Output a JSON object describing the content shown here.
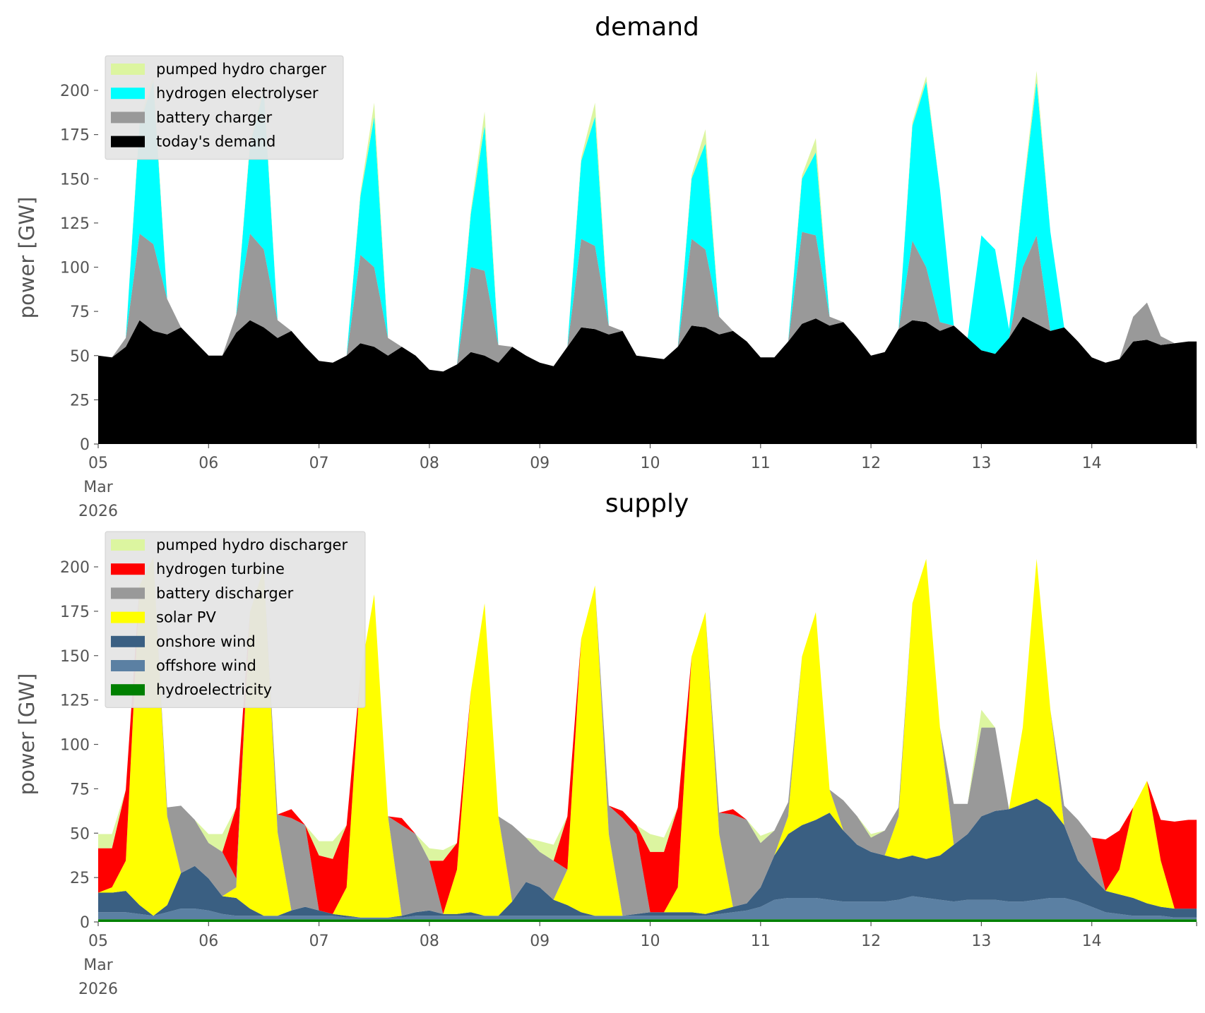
{
  "chart_data": [
    {
      "type": "area",
      "stacked": true,
      "title": "demand",
      "ylabel": "power [GW]",
      "xlabel": "",
      "ylim": [
        0,
        220
      ],
      "yticks": [
        "0",
        "25",
        "50",
        "75",
        "100",
        "125",
        "150",
        "175",
        "200"
      ],
      "xticks": [
        "05",
        "06",
        "07",
        "08",
        "09",
        "10",
        "11",
        "12",
        "13",
        "14"
      ],
      "xtick_sub": [
        "Mar",
        "2026"
      ],
      "x_start": "2026-03-05 00:00",
      "x_step_hours": 3,
      "x_range_days": [
        0,
        9.95
      ],
      "legend_position": "top-left",
      "grid": false,
      "series": [
        {
          "name": "today's demand",
          "color": "#000000",
          "values": [
            50,
            49,
            55,
            70,
            64,
            62,
            66,
            58,
            50,
            50,
            63,
            70,
            66,
            60,
            64,
            55,
            47,
            46,
            50,
            57,
            55,
            50,
            55,
            50,
            42,
            41,
            45,
            52,
            50,
            46,
            55,
            50,
            46,
            44,
            55,
            66,
            65,
            62,
            64,
            50,
            49,
            48,
            55,
            67,
            66,
            62,
            64,
            58,
            49,
            49,
            58,
            68,
            71,
            67,
            69,
            60,
            50,
            52,
            65,
            70,
            69,
            64,
            67,
            60,
            53,
            51,
            60,
            72,
            68,
            64,
            66,
            58,
            49,
            46,
            48,
            58,
            59,
            56,
            57,
            58
          ]
        },
        {
          "name": "battery charger",
          "color": "#999999",
          "values": [
            0,
            0,
            5,
            49,
            49,
            20,
            0,
            0,
            0,
            0,
            10,
            49,
            44,
            10,
            0,
            0,
            0,
            0,
            0,
            50,
            45,
            10,
            0,
            0,
            0,
            0,
            0,
            48,
            48,
            10,
            0,
            0,
            0,
            0,
            0,
            50,
            47,
            5,
            0,
            0,
            0,
            0,
            0,
            49,
            44,
            10,
            0,
            0,
            0,
            0,
            0,
            52,
            47,
            5,
            0,
            0,
            0,
            0,
            0,
            45,
            31,
            5,
            0,
            0,
            0,
            0,
            0,
            28,
            50,
            0,
            0,
            0,
            0,
            0,
            0,
            14,
            21,
            5,
            0,
            0
          ]
        },
        {
          "name": "hydrogen electrolyser",
          "color": "#00ffff",
          "values": [
            0,
            0,
            0,
            62,
            92,
            0,
            0,
            0,
            0,
            0,
            0,
            50,
            90,
            0,
            0,
            0,
            0,
            0,
            0,
            33,
            85,
            0,
            0,
            0,
            0,
            0,
            0,
            30,
            82,
            0,
            0,
            0,
            0,
            0,
            0,
            44,
            73,
            0,
            0,
            0,
            0,
            0,
            0,
            34,
            60,
            0,
            0,
            0,
            0,
            0,
            0,
            30,
            47,
            0,
            0,
            0,
            0,
            0,
            0,
            65,
            105,
            75,
            0,
            0,
            65,
            59,
            5,
            40,
            87,
            56,
            0,
            0,
            0,
            0,
            0,
            0,
            0,
            0,
            0,
            0
          ]
        },
        {
          "name": "pumped hydro charger",
          "color": "#dcf5a0",
          "values": [
            0,
            0,
            0,
            2,
            4,
            0,
            0,
            0,
            0,
            0,
            0,
            2,
            3,
            0,
            0,
            0,
            0,
            0,
            0,
            2,
            8,
            0,
            0,
            0,
            0,
            0,
            0,
            2,
            8,
            0,
            0,
            0,
            0,
            0,
            0,
            2,
            8,
            0,
            0,
            0,
            0,
            0,
            0,
            2,
            8,
            0,
            0,
            0,
            0,
            0,
            0,
            2,
            8,
            0,
            0,
            0,
            0,
            0,
            0,
            2,
            3,
            0,
            0,
            0,
            0,
            0,
            0,
            2,
            6,
            0,
            0,
            0,
            0,
            0,
            0,
            0,
            0,
            0,
            0,
            0
          ]
        }
      ]
    },
    {
      "type": "area",
      "stacked": true,
      "title": "supply",
      "ylabel": "power [GW]",
      "xlabel": "",
      "ylim": [
        0,
        220
      ],
      "yticks": [
        "0",
        "25",
        "50",
        "75",
        "100",
        "125",
        "150",
        "175",
        "200"
      ],
      "xticks": [
        "05",
        "06",
        "07",
        "08",
        "09",
        "10",
        "11",
        "12",
        "13",
        "14"
      ],
      "xtick_sub": [
        "Mar",
        "2026"
      ],
      "x_start": "2026-03-05 00:00",
      "x_step_hours": 3,
      "x_range_days": [
        0,
        9.95
      ],
      "legend_position": "top-left",
      "grid": false,
      "series": [
        {
          "name": "hydroelectricity",
          "color": "#008000",
          "values": [
            1.5,
            1.5,
            1.5,
            1.5,
            1.5,
            1.5,
            1.5,
            1.5,
            1.5,
            1.5,
            1.5,
            1.5,
            1.5,
            1.5,
            1.5,
            1.5,
            1.5,
            1.5,
            1.5,
            1.5,
            1.5,
            1.5,
            1.5,
            1.5,
            1.5,
            1.5,
            1.5,
            1.5,
            1.5,
            1.5,
            1.5,
            1.5,
            1.5,
            1.5,
            1.5,
            1.5,
            1.5,
            1.5,
            1.5,
            1.5,
            1.5,
            1.5,
            1.5,
            1.5,
            1.5,
            1.5,
            1.5,
            1.5,
            1.5,
            1.5,
            1.5,
            1.5,
            1.5,
            1.5,
            1.5,
            1.5,
            1.5,
            1.5,
            1.5,
            1.5,
            1.5,
            1.5,
            1.5,
            1.5,
            1.5,
            1.5,
            1.5,
            1.5,
            1.5,
            1.5,
            1.5,
            1.5,
            1.5,
            1.5,
            1.5,
            1.5,
            1.5,
            1.5,
            1.5,
            1.5
          ]
        },
        {
          "name": "offshore wind",
          "color": "#5b80a3",
          "values": [
            4,
            4,
            4,
            3,
            2,
            4,
            6,
            6,
            5,
            3,
            2,
            2,
            2,
            2,
            2,
            2,
            2,
            2,
            1,
            1,
            1,
            1,
            1,
            2,
            2,
            2,
            2,
            2,
            2,
            2,
            2,
            2,
            2,
            2,
            2,
            2,
            2,
            2,
            2,
            2,
            2,
            2,
            2,
            2,
            2,
            3,
            4,
            5,
            7,
            11,
            12,
            12,
            12,
            11,
            10,
            10,
            10,
            10,
            11,
            13,
            12,
            11,
            10,
            11,
            11,
            11,
            10,
            10,
            11,
            12,
            12,
            10,
            7,
            4,
            3,
            2,
            2,
            2,
            1,
            1
          ]
        },
        {
          "name": "onshore wind",
          "color": "#3a5f82",
          "values": [
            11,
            11,
            12,
            5,
            0,
            4,
            20,
            24,
            18,
            10,
            10,
            4,
            0,
            0,
            3,
            5,
            3,
            1,
            1,
            0,
            0,
            0,
            1,
            2,
            3,
            1,
            1,
            2,
            0,
            0,
            8,
            19,
            16,
            9,
            6,
            2,
            0,
            0,
            0,
            1,
            2,
            2,
            2,
            2,
            1,
            2,
            3,
            4,
            11,
            25,
            36,
            41,
            44,
            49,
            40,
            32,
            28,
            26,
            23,
            23,
            22,
            25,
            32,
            37,
            47,
            50,
            52,
            55,
            57,
            51,
            41,
            23,
            17,
            12,
            11,
            10,
            7,
            5,
            5,
            5
          ]
        },
        {
          "name": "solar PV",
          "color": "#ffff00",
          "values": [
            0,
            3,
            17,
            180,
            202,
            50,
            0,
            0,
            0,
            0,
            6,
            167,
            196,
            47,
            0,
            0,
            0,
            0,
            16,
            137,
            182,
            57,
            0,
            0,
            0,
            0,
            25,
            124,
            176,
            56,
            0,
            0,
            0,
            0,
            20,
            154,
            186,
            46,
            0,
            0,
            0,
            0,
            14,
            144,
            170,
            43,
            0,
            0,
            0,
            0,
            10,
            95,
            117,
            13,
            0,
            0,
            0,
            0,
            24,
            142,
            169,
            72,
            0,
            0,
            0,
            0,
            0,
            43,
            135,
            55,
            0,
            0,
            0,
            0,
            14,
            51,
            69,
            26,
            0,
            0
          ]
        },
        {
          "name": "battery discharger",
          "color": "#999999",
          "values": [
            0,
            0,
            0,
            0,
            0,
            5,
            38,
            26,
            20,
            25,
            5,
            0,
            0,
            10,
            52,
            46,
            0,
            0,
            0,
            0,
            0,
            0,
            51,
            44,
            28,
            0,
            0,
            0,
            0,
            0,
            43,
            25,
            20,
            22,
            0,
            0,
            0,
            16,
            55,
            45,
            0,
            0,
            0,
            0,
            0,
            12,
            52,
            47,
            25,
            14,
            8,
            0,
            0,
            0,
            17,
            16,
            8,
            14,
            5,
            0,
            0,
            0,
            23,
            17,
            50,
            47,
            0,
            0,
            0,
            0,
            11,
            23,
            22,
            0,
            0,
            0,
            0,
            0,
            0,
            0
          ]
        },
        {
          "name": "hydrogen turbine",
          "color": "#ff0000",
          "values": [
            25,
            22,
            40,
            0,
            0,
            0,
            0,
            0,
            0,
            0,
            40,
            0,
            0,
            0,
            5,
            0,
            31,
            31,
            35,
            0,
            0,
            0,
            4,
            0,
            0,
            30,
            15,
            0,
            0,
            0,
            0,
            0,
            0,
            0,
            30,
            0,
            0,
            0,
            4,
            5,
            34,
            34,
            45,
            0,
            0,
            0,
            3,
            0,
            0,
            0,
            0,
            0,
            0,
            0,
            0,
            0,
            0,
            0,
            0,
            0,
            0,
            0,
            0,
            0,
            0,
            0,
            0,
            0,
            0,
            0,
            0,
            0,
            0,
            29,
            22,
            0,
            0,
            23,
            49,
            50
          ]
        },
        {
          "name": "pumped hydro discharger",
          "color": "#dcf5a0",
          "values": [
            8,
            8,
            0,
            0,
            0,
            0,
            0,
            0,
            5,
            10,
            0,
            0,
            0,
            0,
            0,
            0,
            8,
            10,
            0,
            0,
            0,
            0,
            0,
            0,
            7,
            6,
            0,
            0,
            0,
            0,
            0,
            0,
            6,
            9,
            0,
            0,
            0,
            0,
            0,
            0,
            10,
            8,
            0,
            0,
            0,
            0,
            0,
            0,
            4,
            0,
            0,
            0,
            0,
            0,
            0,
            0,
            2,
            0,
            0,
            0,
            0,
            0,
            0,
            0,
            10,
            0,
            0,
            0,
            0,
            0,
            0,
            0,
            0,
            0,
            0,
            0,
            0,
            0,
            0,
            0
          ]
        }
      ]
    }
  ],
  "legends": [
    [
      "pumped hydro charger",
      "hydrogen electrolyser",
      "battery charger",
      "today's demand"
    ],
    [
      "pumped hydro discharger",
      "hydrogen turbine",
      "battery discharger",
      "solar PV",
      "onshore wind",
      "offshore wind",
      "hydroelectricity"
    ]
  ]
}
